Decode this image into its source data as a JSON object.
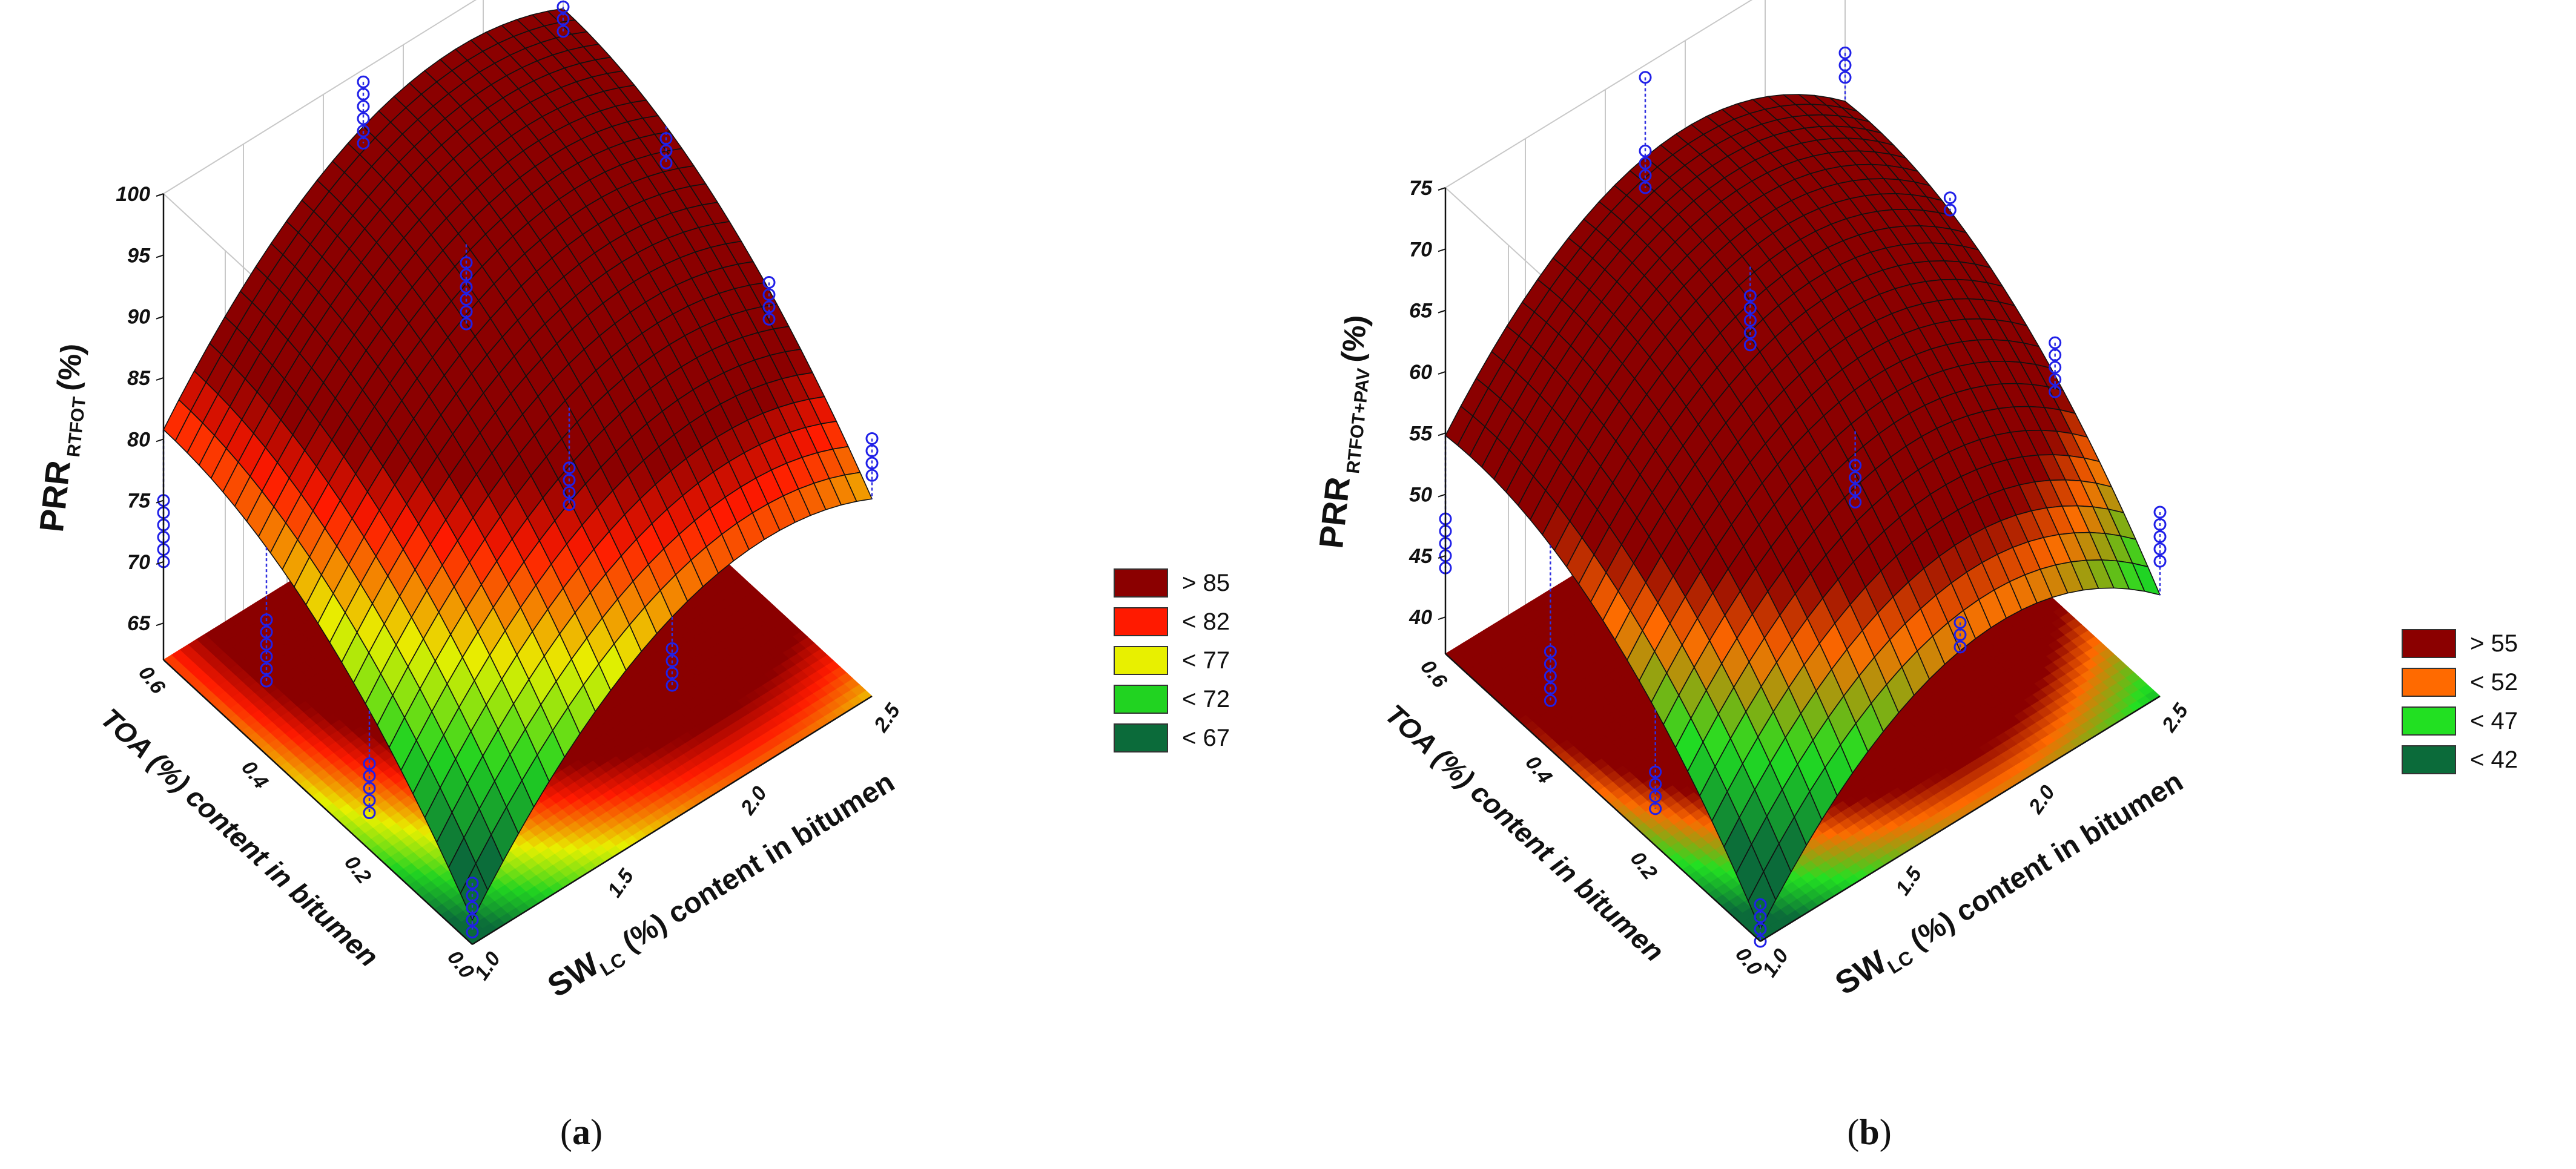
{
  "chart_data": [
    {
      "type": "surface3d",
      "panel_label": "a",
      "zlabel_main": "PRR",
      "zlabel_sub": "RTFOT",
      "zlabel_unit": "(%)",
      "xlabel_main": "SW",
      "xlabel_sub": "LC",
      "xlabel_rest": "(%) content in bitumen",
      "ylabel": "TOA (%) content in bitumen",
      "x_ticks": [
        "1.0",
        "1.5",
        "2.0",
        "2.5"
      ],
      "y_ticks": [
        "0.0",
        "0.2",
        "0.4",
        "0.6"
      ],
      "z_ticks": [
        "65",
        "70",
        "75",
        "80",
        "85",
        "90",
        "95",
        "100"
      ],
      "xlim": [
        1.0,
        2.5
      ],
      "ylim": [
        0.0,
        0.6
      ],
      "zlim": [
        62,
        100
      ],
      "surface": {
        "x_peak": 2.1,
        "y_peak": 0.6,
        "z_peak": 97,
        "z_corner_x1_y0": 64
      },
      "legend": [
        {
          "label": "> 85",
          "color": "#8b0000"
        },
        {
          "label": "< 82",
          "color": "#ff1a00"
        },
        {
          "label": "< 77",
          "color": "#e8f000"
        },
        {
          "label": "< 72",
          "color": "#21d321"
        },
        {
          "label": "< 67",
          "color": "#0b6b3a"
        }
      ],
      "data_columns": [
        {
          "x": 1.0,
          "y": 0.6,
          "z": [
            75,
            74,
            73,
            72,
            71,
            70
          ]
        },
        {
          "x": 1.0,
          "y": 0.4,
          "z": [
            73,
            72,
            71,
            70,
            69,
            68
          ]
        },
        {
          "x": 1.0,
          "y": 0.2,
          "z": [
            69,
            68,
            67,
            66,
            65
          ]
        },
        {
          "x": 1.0,
          "y": 0.0,
          "z": [
            67,
            66,
            65,
            64,
            63
          ]
        },
        {
          "x": 1.75,
          "y": 0.6,
          "z": [
            99,
            98,
            97,
            96,
            95,
            94
          ]
        },
        {
          "x": 1.75,
          "y": 0.4,
          "z": [
            92,
            91,
            90,
            89,
            88,
            87
          ]
        },
        {
          "x": 1.75,
          "y": 0.2,
          "z": [
            83,
            82,
            81,
            80
          ]
        },
        {
          "x": 1.75,
          "y": 0.0,
          "z": [
            76,
            75,
            74,
            73
          ]
        },
        {
          "x": 2.5,
          "y": 0.6,
          "z": [
            95,
            94,
            93
          ]
        },
        {
          "x": 2.5,
          "y": 0.4,
          "z": [
            92,
            91,
            90
          ]
        },
        {
          "x": 2.5,
          "y": 0.2,
          "z": [
            88,
            87,
            86,
            85
          ]
        },
        {
          "x": 2.5,
          "y": 0.0,
          "z": [
            83,
            82,
            81,
            80
          ]
        }
      ]
    },
    {
      "type": "surface3d",
      "panel_label": "b",
      "zlabel_main": "PRR",
      "zlabel_sub": "RTFOT+PAV",
      "zlabel_unit": "(%)",
      "xlabel_main": "SW",
      "xlabel_sub": "LC",
      "xlabel_rest": "(%) content in bitumen",
      "ylabel": "TOA (%) content in bitumen",
      "x_ticks": [
        "1.0",
        "1.5",
        "2.0",
        "2.5"
      ],
      "y_ticks": [
        "0.0",
        "0.2",
        "0.4",
        "0.6"
      ],
      "z_ticks": [
        "40",
        "45",
        "50",
        "55",
        "60",
        "65",
        "70",
        "75"
      ],
      "xlim": [
        1.0,
        2.5
      ],
      "ylim": [
        0.0,
        0.6
      ],
      "zlim": [
        37,
        75
      ],
      "surface": {
        "x_peak": 1.9,
        "y_peak": 0.55,
        "z_peak": 68,
        "z_corner_x1_y0": 38
      },
      "legend": [
        {
          "label": "> 55",
          "color": "#8b0000"
        },
        {
          "label": "< 52",
          "color": "#ff6a00"
        },
        {
          "label": "< 47",
          "color": "#22e022"
        },
        {
          "label": "< 42",
          "color": "#0b6b3a"
        }
      ],
      "data_columns": [
        {
          "x": 1.0,
          "y": 0.6,
          "z": [
            48,
            47,
            46,
            45,
            44
          ]
        },
        {
          "x": 1.0,
          "y": 0.4,
          "z": [
            45,
            44,
            43,
            42,
            41
          ]
        },
        {
          "x": 1.0,
          "y": 0.2,
          "z": [
            43,
            42,
            41,
            40
          ]
        },
        {
          "x": 1.0,
          "y": 0.0,
          "z": [
            40,
            39,
            38,
            37
          ]
        },
        {
          "x": 1.75,
          "y": 0.6,
          "z": [
            74,
            68,
            67,
            66,
            65
          ]
        },
        {
          "x": 1.75,
          "y": 0.4,
          "z": [
            64,
            63,
            62,
            61,
            60
          ]
        },
        {
          "x": 1.75,
          "y": 0.2,
          "z": [
            58,
            57,
            56,
            55
          ]
        },
        {
          "x": 1.75,
          "y": 0.0,
          "z": [
            53,
            52,
            51
          ]
        },
        {
          "x": 2.5,
          "y": 0.6,
          "z": [
            66,
            65,
            64
          ]
        },
        {
          "x": 2.5,
          "y": 0.4,
          "z": [
            62,
            61
          ]
        },
        {
          "x": 2.5,
          "y": 0.2,
          "z": [
            58,
            57,
            56,
            55,
            54
          ]
        },
        {
          "x": 2.5,
          "y": 0.0,
          "z": [
            52,
            51,
            50,
            49,
            48
          ]
        }
      ]
    }
  ]
}
